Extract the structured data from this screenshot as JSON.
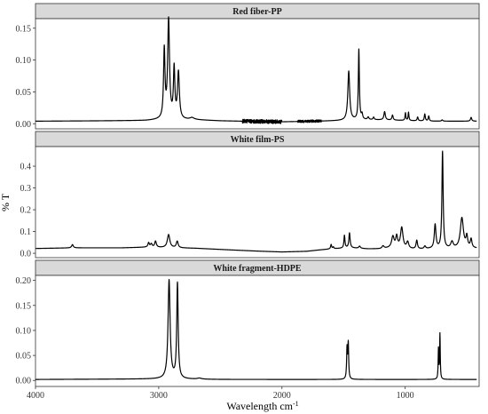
{
  "chart_data": {
    "type": "line",
    "xlabel": "Wavelength cm",
    "xlabel_sup": "-1",
    "ylabel": "% T",
    "x_reversed": true,
    "xlim": [
      4000,
      400
    ],
    "x_ticks": [
      4000,
      3000,
      2000,
      1000
    ],
    "x_tick_labels": [
      "4000",
      "3000",
      "2000",
      "1000"
    ],
    "grid": false,
    "legend": "none",
    "colors": {
      "line": "#000000",
      "strip_fill": "#d9d9d9",
      "frame": "#333333"
    },
    "panels": [
      {
        "title": "Red fiber-PP",
        "ylim": [
          -0.008,
          0.165
        ],
        "y_ticks": [
          0,
          0.05,
          0.1,
          0.15
        ],
        "y_tick_labels": [
          "0.00",
          "0.05",
          "0.10",
          "0.15"
        ],
        "baseline": [
          [
            4000,
            0.004
          ],
          [
            3500,
            0.0045
          ],
          [
            3100,
            0.005
          ],
          [
            3000,
            0.006
          ],
          [
            2700,
            0.006
          ],
          [
            2500,
            0.0045
          ],
          [
            2200,
            0.0035
          ],
          [
            2000,
            0.003
          ],
          [
            1700,
            0.004
          ],
          [
            1500,
            0.005
          ],
          [
            1400,
            0.006
          ],
          [
            1200,
            0.006
          ],
          [
            1000,
            0.005
          ],
          [
            800,
            0.004
          ],
          [
            600,
            0.004
          ],
          [
            420,
            0.004
          ]
        ],
        "peaks": [
          {
            "x": 2955,
            "h": 0.107,
            "w": 7
          },
          {
            "x": 2920,
            "h": 0.155,
            "w": 9
          },
          {
            "x": 2875,
            "h": 0.078,
            "w": 7
          },
          {
            "x": 2840,
            "h": 0.073,
            "w": 9
          },
          {
            "x": 2730,
            "h": 0.003,
            "w": 20
          },
          {
            "x": 1458,
            "h": 0.077,
            "w": 9
          },
          {
            "x": 1376,
            "h": 0.11,
            "w": 5
          },
          {
            "x": 1350,
            "h": 0.008,
            "w": 6
          },
          {
            "x": 1300,
            "h": 0.004,
            "w": 7
          },
          {
            "x": 1256,
            "h": 0.004,
            "w": 6
          },
          {
            "x": 1167,
            "h": 0.013,
            "w": 7
          },
          {
            "x": 1103,
            "h": 0.008,
            "w": 6
          },
          {
            "x": 998,
            "h": 0.012,
            "w": 4
          },
          {
            "x": 973,
            "h": 0.013,
            "w": 4
          },
          {
            "x": 899,
            "h": 0.006,
            "w": 5
          },
          {
            "x": 841,
            "h": 0.011,
            "w": 5
          },
          {
            "x": 809,
            "h": 0.008,
            "w": 5
          },
          {
            "x": 700,
            "h": 0.002,
            "w": 6
          },
          {
            "x": 465,
            "h": 0.006,
            "w": 6
          }
        ],
        "noise": [
          [
            2320,
            2000,
            0.003
          ],
          [
            1870,
            1680,
            0.002
          ]
        ]
      },
      {
        "title": "White film-PS",
        "ylim": [
          -0.02,
          0.49
        ],
        "y_ticks": [
          0,
          0.1,
          0.2,
          0.3,
          0.4
        ],
        "y_tick_labels": [
          "0.0",
          "0.1",
          "0.2",
          "0.3",
          "0.4"
        ],
        "baseline": [
          [
            4000,
            0.022
          ],
          [
            3700,
            0.025
          ],
          [
            3300,
            0.025
          ],
          [
            3100,
            0.028
          ],
          [
            2700,
            0.023
          ],
          [
            2400,
            0.015
          ],
          [
            2200,
            0.01
          ],
          [
            2000,
            0.006
          ],
          [
            1800,
            0.009
          ],
          [
            1700,
            0.015
          ],
          [
            1600,
            0.02
          ],
          [
            1450,
            0.025
          ],
          [
            1300,
            0.02
          ],
          [
            1200,
            0.02
          ],
          [
            1100,
            0.025
          ],
          [
            1000,
            0.02
          ],
          [
            900,
            0.018
          ],
          [
            800,
            0.02
          ],
          [
            700,
            0.02
          ],
          [
            600,
            0.02
          ],
          [
            500,
            0.022
          ],
          [
            420,
            0.022
          ]
        ],
        "peaks": [
          {
            "x": 3700,
            "h": 0.015,
            "w": 8
          },
          {
            "x": 3082,
            "h": 0.02,
            "w": 7
          },
          {
            "x": 3060,
            "h": 0.015,
            "w": 8
          },
          {
            "x": 3026,
            "h": 0.028,
            "w": 8
          },
          {
            "x": 2920,
            "h": 0.06,
            "w": 12
          },
          {
            "x": 2850,
            "h": 0.03,
            "w": 9
          },
          {
            "x": 1601,
            "h": 0.02,
            "w": 5
          },
          {
            "x": 1583,
            "h": 0.008,
            "w": 5
          },
          {
            "x": 1493,
            "h": 0.058,
            "w": 5
          },
          {
            "x": 1452,
            "h": 0.068,
            "w": 6
          },
          {
            "x": 1370,
            "h": 0.01,
            "w": 8
          },
          {
            "x": 1180,
            "h": 0.012,
            "w": 10
          },
          {
            "x": 1100,
            "h": 0.05,
            "w": 12
          },
          {
            "x": 1069,
            "h": 0.05,
            "w": 9
          },
          {
            "x": 1028,
            "h": 0.095,
            "w": 12
          },
          {
            "x": 980,
            "h": 0.03,
            "w": 10
          },
          {
            "x": 906,
            "h": 0.04,
            "w": 7
          },
          {
            "x": 840,
            "h": 0.012,
            "w": 8
          },
          {
            "x": 757,
            "h": 0.11,
            "w": 8
          },
          {
            "x": 697,
            "h": 0.445,
            "w": 6
          },
          {
            "x": 620,
            "h": 0.03,
            "w": 12
          },
          {
            "x": 540,
            "h": 0.14,
            "w": 15
          },
          {
            "x": 500,
            "h": 0.05,
            "w": 8
          },
          {
            "x": 465,
            "h": 0.04,
            "w": 8
          }
        ],
        "noise": []
      },
      {
        "title": "White fragment-HDPE",
        "ylim": [
          -0.012,
          0.21
        ],
        "y_ticks": [
          0,
          0.05,
          0.1,
          0.15,
          0.2
        ],
        "y_tick_labels": [
          "0.00",
          "0.05",
          "0.10",
          "0.15",
          "0.20"
        ],
        "baseline": [
          [
            4000,
            0.002
          ],
          [
            3000,
            0.003
          ],
          [
            2500,
            0.002
          ],
          [
            2000,
            0.002
          ],
          [
            1500,
            0.002
          ],
          [
            1000,
            0.002
          ],
          [
            600,
            0.002
          ],
          [
            420,
            0.002
          ]
        ],
        "peaks": [
          {
            "x": 2916,
            "h": 0.197,
            "w": 10
          },
          {
            "x": 2848,
            "h": 0.19,
            "w": 7
          },
          {
            "x": 2670,
            "h": 0.002,
            "w": 20
          },
          {
            "x": 1472,
            "h": 0.06,
            "w": 4
          },
          {
            "x": 1462,
            "h": 0.07,
            "w": 4
          },
          {
            "x": 730,
            "h": 0.06,
            "w": 3
          },
          {
            "x": 718,
            "h": 0.09,
            "w": 3
          }
        ],
        "noise": []
      }
    ]
  }
}
